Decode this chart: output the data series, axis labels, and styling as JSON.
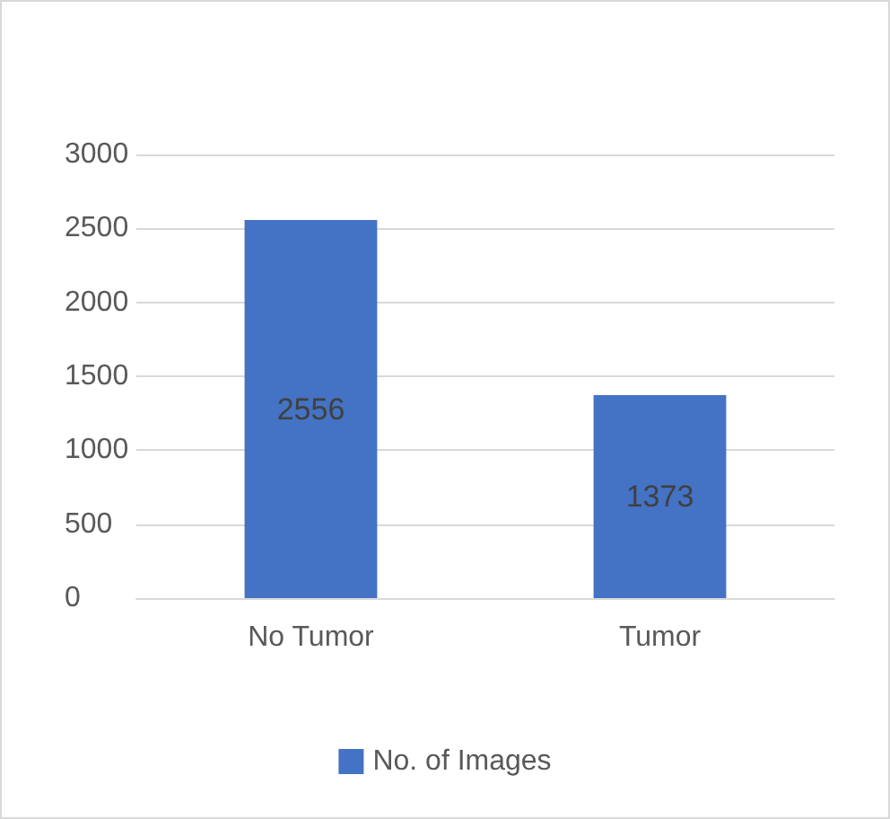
{
  "chart_data": {
    "type": "bar",
    "categories": [
      "No Tumor",
      "Tumor"
    ],
    "series": [
      {
        "name": "No. of Images",
        "color": "#4472c4",
        "values": [
          2556,
          1373
        ]
      }
    ],
    "ylim": [
      0,
      3000
    ],
    "yticks": [
      0,
      500,
      1000,
      1500,
      2000,
      2500,
      3000
    ],
    "grid": "y",
    "legend": "bottom",
    "data_labels": true
  }
}
